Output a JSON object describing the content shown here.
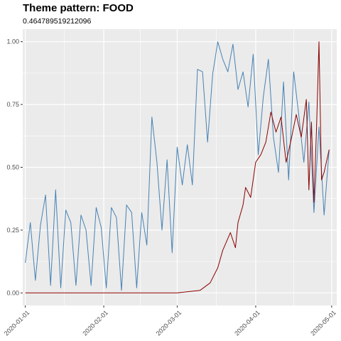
{
  "chart_data": {
    "type": "line",
    "title": "Theme pattern: FOOD",
    "subtitle": "0.464789519212096",
    "xlabel": "",
    "ylabel": "",
    "xlim": [
      "2019-12-31",
      "2020-05-03"
    ],
    "ylim": [
      -0.05,
      1.05
    ],
    "x_ticks": [
      "2020-01-01",
      "2020-02-01",
      "2020-03-01",
      "2020-04-01",
      "2020-05-01"
    ],
    "y_ticks": [
      "0.00",
      "0.25",
      "0.50",
      "0.75",
      "1.00"
    ],
    "y_tick_values": [
      0,
      0.25,
      0.5,
      0.75,
      1.0
    ],
    "grid": true,
    "background": "#ebebeb",
    "series": [
      {
        "color": "#4682b4",
        "x": [
          "2020-01-01",
          "2020-01-03",
          "2020-01-05",
          "2020-01-07",
          "2020-01-09",
          "2020-01-11",
          "2020-01-13",
          "2020-01-15",
          "2020-01-17",
          "2020-01-19",
          "2020-01-21",
          "2020-01-23",
          "2020-01-25",
          "2020-01-27",
          "2020-01-29",
          "2020-01-31",
          "2020-02-02",
          "2020-02-04",
          "2020-02-06",
          "2020-02-08",
          "2020-02-10",
          "2020-02-12",
          "2020-02-14",
          "2020-02-16",
          "2020-02-18",
          "2020-02-20",
          "2020-02-22",
          "2020-02-24",
          "2020-02-26",
          "2020-02-28",
          "2020-03-01",
          "2020-03-03",
          "2020-03-05",
          "2020-03-07",
          "2020-03-09",
          "2020-03-11",
          "2020-03-13",
          "2020-03-15",
          "2020-03-17",
          "2020-03-19",
          "2020-03-21",
          "2020-03-23",
          "2020-03-25",
          "2020-03-27",
          "2020-03-29",
          "2020-03-31",
          "2020-04-02",
          "2020-04-04",
          "2020-04-06",
          "2020-04-08",
          "2020-04-10",
          "2020-04-12",
          "2020-04-14",
          "2020-04-16",
          "2020-04-18",
          "2020-04-20",
          "2020-04-22",
          "2020-04-24",
          "2020-04-26",
          "2020-04-28",
          "2020-04-30"
        ],
        "y": [
          0.12,
          0.28,
          0.05,
          0.27,
          0.39,
          0.03,
          0.41,
          0.02,
          0.33,
          0.28,
          0.03,
          0.31,
          0.25,
          0.03,
          0.34,
          0.26,
          0.02,
          0.34,
          0.3,
          0.01,
          0.35,
          0.32,
          0.02,
          0.32,
          0.19,
          0.7,
          0.52,
          0.25,
          0.53,
          0.16,
          0.58,
          0.43,
          0.59,
          0.43,
          0.89,
          0.88,
          0.6,
          0.87,
          1.0,
          0.93,
          0.88,
          0.99,
          0.81,
          0.88,
          0.74,
          0.95,
          0.55,
          0.78,
          0.93,
          0.62,
          0.48,
          0.84,
          0.45,
          0.88,
          0.71,
          0.52,
          0.76,
          0.32,
          0.66,
          0.31,
          0.57
        ]
      },
      {
        "color": "#8b0000",
        "x": [
          "2020-01-01",
          "2020-02-01",
          "2020-03-01",
          "2020-03-10",
          "2020-03-14",
          "2020-03-17",
          "2020-03-19",
          "2020-03-22",
          "2020-03-24",
          "2020-03-25",
          "2020-03-27",
          "2020-03-28",
          "2020-03-30",
          "2020-04-01",
          "2020-04-03",
          "2020-04-05",
          "2020-04-07",
          "2020-04-09",
          "2020-04-11",
          "2020-04-13",
          "2020-04-15",
          "2020-04-17",
          "2020-04-19",
          "2020-04-21",
          "2020-04-22",
          "2020-04-23",
          "2020-04-24",
          "2020-04-25",
          "2020-04-26",
          "2020-04-27",
          "2020-04-28",
          "2020-04-30"
        ],
        "y": [
          0,
          0,
          0,
          0.01,
          0.04,
          0.1,
          0.17,
          0.24,
          0.18,
          0.28,
          0.35,
          0.42,
          0.38,
          0.52,
          0.55,
          0.6,
          0.72,
          0.64,
          0.7,
          0.52,
          0.61,
          0.71,
          0.62,
          0.77,
          0.41,
          0.68,
          0.36,
          0.65,
          1.0,
          0.45,
          0.48,
          0.57
        ]
      }
    ]
  }
}
